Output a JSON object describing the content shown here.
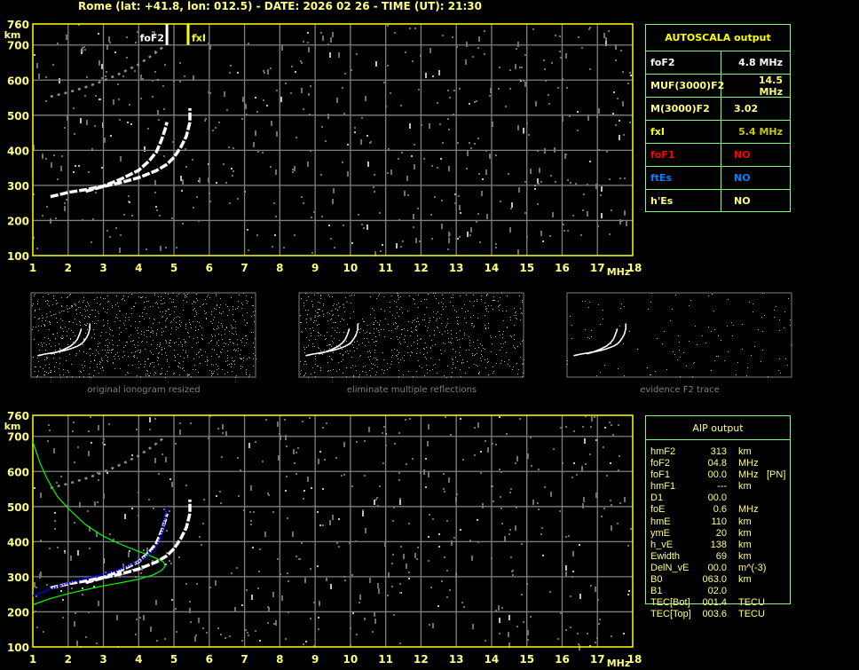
{
  "header": {
    "title": "Rome (lat: +41.8, lon: 012.5) - DATE: 2026 02 26 - TIME (UT): 21:30"
  },
  "colors": {
    "frame": "#ffff00",
    "label": "#ffff80",
    "grid": "#808080",
    "trace": "#ffffff",
    "profile": "#00ff00",
    "fit": "#0000ff",
    "table_border": "#80ff80"
  },
  "chart_data": [
    {
      "type": "scatter",
      "title": "",
      "xlabel": "MHz",
      "ylabel": "km",
      "xlim": [
        1,
        18
      ],
      "ylim": [
        100,
        760
      ],
      "grid": true,
      "xticks": [
        "1",
        "2",
        "3",
        "4",
        "5",
        "6",
        "7",
        "8",
        "9",
        "10",
        "11",
        "12",
        "13",
        "14",
        "15",
        "16",
        "17",
        "18"
      ],
      "yticks": [
        "100",
        "200",
        "300",
        "400",
        "500",
        "600",
        "700",
        "760"
      ],
      "markers": [
        {
          "label": "foF2",
          "x": 4.8,
          "color": "#ffffff"
        },
        {
          "label": "fxI",
          "x": 5.4,
          "color": "#ffff00"
        }
      ],
      "series": [
        {
          "type": "trace",
          "points": [
            [
              1.5,
              268
            ],
            [
              1.8,
              275
            ],
            [
              2,
              280
            ],
            [
              2.5,
              288
            ],
            [
              3,
              298
            ],
            [
              3.5,
              318
            ],
            [
              4,
              343
            ],
            [
              4.3,
              370
            ],
            [
              4.5,
              395
            ],
            [
              4.65,
              430
            ],
            [
              4.75,
              460
            ],
            [
              4.8,
              480
            ]
          ]
        },
        {
          "type": "trace",
          "points": [
            [
              2.5,
              283
            ],
            [
              3,
              297
            ],
            [
              3.5,
              308
            ],
            [
              4,
              322
            ],
            [
              4.5,
              342
            ],
            [
              4.8,
              360
            ],
            [
              5,
              380
            ],
            [
              5.2,
              410
            ],
            [
              5.35,
              440
            ],
            [
              5.45,
              480
            ],
            [
              5.45,
              520
            ]
          ]
        },
        {
          "type": "trace-second-hop",
          "points": [
            [
              1.5,
              553
            ],
            [
              2,
              565
            ],
            [
              2.5,
              580
            ],
            [
              3,
              598
            ],
            [
              3.5,
              620
            ],
            [
              4,
              645
            ],
            [
              4.4,
              672
            ],
            [
              4.7,
              695
            ]
          ]
        }
      ]
    },
    {
      "type": "scatter",
      "title": "",
      "xlabel": "MHz",
      "ylabel": "km",
      "xlim": [
        1,
        18
      ],
      "ylim": [
        100,
        760
      ],
      "grid": true,
      "xticks": [
        "1",
        "2",
        "3",
        "4",
        "5",
        "6",
        "7",
        "8",
        "9",
        "10",
        "11",
        "12",
        "13",
        "14",
        "15",
        "16",
        "17",
        "18"
      ],
      "yticks": [
        "100",
        "200",
        "300",
        "400",
        "500",
        "600",
        "700",
        "760"
      ],
      "series": [
        {
          "type": "trace",
          "points": [
            [
              1.5,
              268
            ],
            [
              1.8,
              275
            ],
            [
              2,
              280
            ],
            [
              2.5,
              288
            ],
            [
              3,
              298
            ],
            [
              3.5,
              318
            ],
            [
              4,
              343
            ],
            [
              4.3,
              370
            ],
            [
              4.5,
              395
            ],
            [
              4.65,
              430
            ],
            [
              4.75,
              460
            ],
            [
              4.8,
              480
            ]
          ]
        },
        {
          "type": "trace",
          "points": [
            [
              2.5,
              283
            ],
            [
              3,
              297
            ],
            [
              3.5,
              308
            ],
            [
              4,
              322
            ],
            [
              4.5,
              342
            ],
            [
              4.8,
              360
            ],
            [
              5,
              380
            ],
            [
              5.2,
              410
            ],
            [
              5.35,
              440
            ],
            [
              5.45,
              480
            ],
            [
              5.45,
              520
            ]
          ]
        },
        {
          "type": "trace-second-hop",
          "points": [
            [
              1.5,
              553
            ],
            [
              2,
              565
            ],
            [
              2.5,
              580
            ],
            [
              3,
              598
            ],
            [
              3.5,
              620
            ],
            [
              4,
              645
            ],
            [
              4.4,
              672
            ],
            [
              4.7,
              695
            ]
          ]
        },
        {
          "type": "profile",
          "color": "#00ff00",
          "points": [
            [
              1,
              220
            ],
            [
              1.5,
              238
            ],
            [
              2,
              252
            ],
            [
              2.5,
              263
            ],
            [
              3,
              274
            ],
            [
              3.5,
              283
            ],
            [
              4,
              293
            ],
            [
              4.4,
              305
            ],
            [
              4.65,
              318
            ],
            [
              4.75,
              330
            ],
            [
              4.7,
              343
            ],
            [
              4.5,
              352
            ],
            [
              4.2,
              365
            ],
            [
              4,
              372
            ],
            [
              3.5,
              392
            ],
            [
              3,
              415
            ],
            [
              2.5,
              448
            ],
            [
              2,
              495
            ],
            [
              1.7,
              528
            ],
            [
              1.4,
              580
            ],
            [
              1.2,
              625
            ],
            [
              1,
              685
            ]
          ]
        },
        {
          "type": "fit",
          "color": "#0000ff",
          "points": [
            [
              1,
              245
            ],
            [
              1.5,
              265
            ],
            [
              2,
              282
            ],
            [
              2.5,
              295
            ],
            [
              3,
              306
            ],
            [
              3.5,
              322
            ],
            [
              4,
              343
            ],
            [
              4.3,
              365
            ],
            [
              4.5,
              385
            ],
            [
              4.6,
              410
            ],
            [
              4.7,
              440
            ],
            [
              4.8,
              500
            ]
          ]
        }
      ]
    }
  ],
  "thumbnails": [
    {
      "caption": "original ionogram resized"
    },
    {
      "caption": "eliminate multiple reflections"
    },
    {
      "caption": "evidence F2 trace"
    }
  ],
  "autoscala": {
    "title": "AUTOSCALA output",
    "rows": [
      {
        "key": "foF2",
        "value": "4.8 MHz",
        "key_color": "#ffffff",
        "value_color": "#ffffff"
      },
      {
        "key": "MUF(3000)F2",
        "value": "14.5 MHz",
        "key_color": "#ffff80",
        "value_color": "#ffff80"
      },
      {
        "key": "M(3000)F2",
        "value": "3.02",
        "key_color": "#ffff80",
        "value_color": "#ffff80"
      },
      {
        "key": "fxI",
        "value": "5.4 MHz",
        "key_color": "#ffff00",
        "value_color": "#c8c800"
      },
      {
        "key": "foF1",
        "value": "NO",
        "key_color": "#ff0000",
        "value_color": "#ff0000"
      },
      {
        "key": "ftEs",
        "value": "NO",
        "key_color": "#0080ff",
        "value_color": "#0080ff"
      },
      {
        "key": "h'Es",
        "value": "NO",
        "key_color": "#ffff80",
        "value_color": "#ffff80"
      }
    ]
  },
  "aip": {
    "title": "AIP output",
    "rows": [
      {
        "key": "hmF2",
        "value": "313",
        "unit": "km",
        "extra": ""
      },
      {
        "key": "foF2",
        "value": "04.8",
        "unit": "MHz",
        "extra": ""
      },
      {
        "key": "foF1",
        "value": "00.0",
        "unit": "MHz",
        "extra": "[PN]"
      },
      {
        "key": "hmF1",
        "value": "---",
        "unit": "km",
        "extra": ""
      },
      {
        "key": "D1",
        "value": "00.0",
        "unit": "",
        "extra": ""
      },
      {
        "key": "foE",
        "value": "0.6",
        "unit": "MHz",
        "extra": ""
      },
      {
        "key": "hmE",
        "value": "110",
        "unit": "km",
        "extra": ""
      },
      {
        "key": "ymE",
        "value": "20",
        "unit": "km",
        "extra": ""
      },
      {
        "key": "h_vE",
        "value": "138",
        "unit": "km",
        "extra": ""
      },
      {
        "key": "Ewidth",
        "value": "69",
        "unit": "km",
        "extra": ""
      },
      {
        "key": "DelN_vE",
        "value": "00.0",
        "unit": "m^(-3)",
        "extra": ""
      },
      {
        "key": "B0",
        "value": "063.0",
        "unit": "km",
        "extra": ""
      },
      {
        "key": "B1",
        "value": "02.0",
        "unit": "",
        "extra": ""
      },
      {
        "key": "TEC[Bot]",
        "value": "001.4",
        "unit": "TECU",
        "extra": ""
      },
      {
        "key": "TEC[Top]",
        "value": "003.6",
        "unit": "TECU",
        "extra": ""
      }
    ]
  }
}
